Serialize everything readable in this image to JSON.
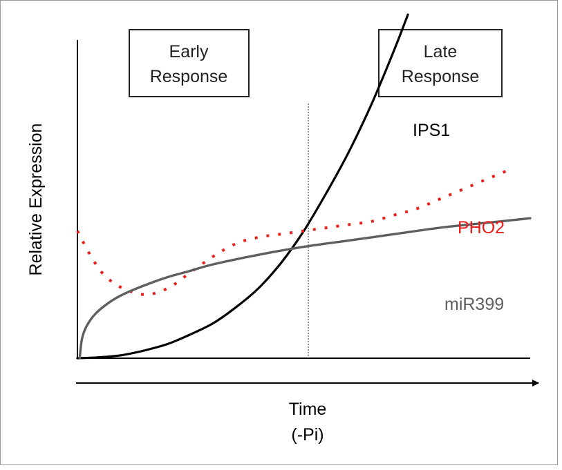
{
  "chart_data": {
    "type": "line",
    "ylabel": "Relative Expression",
    "xlabel_line1": "Time",
    "xlabel_line2": "(-Pi)",
    "phases": {
      "early": {
        "line1": "Early",
        "line2": "Response"
      },
      "late": {
        "line1": "Late",
        "line2": "Response"
      }
    },
    "xlim": [
      0,
      100
    ],
    "ylim": [
      0,
      100
    ],
    "phase_divider_x": 51,
    "grid": false,
    "legend": "none (direct labels)",
    "series": [
      {
        "name": "IPS1",
        "style": "solid",
        "color": "#000000",
        "x": [
          0,
          5,
          10,
          15,
          20,
          25,
          30,
          35,
          40,
          45,
          50,
          55,
          60,
          65,
          70,
          73
        ],
        "y": [
          0,
          0.3,
          1,
          2.5,
          4.5,
          7.5,
          11,
          16,
          22,
          30,
          40,
          52,
          65,
          80,
          97,
          108
        ]
      },
      {
        "name": "PHO2",
        "style": "dotted",
        "color": "#e8201b",
        "x": [
          0,
          3,
          6,
          10,
          15,
          20,
          25,
          30,
          35,
          40,
          45,
          50,
          55,
          60,
          65,
          70,
          75,
          80,
          85,
          90,
          95
        ],
        "y": [
          40,
          32,
          26,
          22,
          20,
          22,
          27,
          32,
          36,
          38,
          39,
          40,
          41,
          42,
          43,
          45,
          47,
          50,
          53,
          56,
          59
        ]
      },
      {
        "name": "miR399",
        "style": "solid",
        "color": "#5f5f5f",
        "x": [
          0.5,
          1,
          2,
          4,
          7,
          10,
          15,
          20,
          25,
          30,
          40,
          50,
          60,
          70,
          80,
          90,
          100
        ],
        "y": [
          0,
          6,
          10,
          14,
          17.5,
          20,
          23,
          25.5,
          27.5,
          29.5,
          32.5,
          35,
          37,
          39,
          41,
          42.5,
          44
        ]
      }
    ]
  }
}
